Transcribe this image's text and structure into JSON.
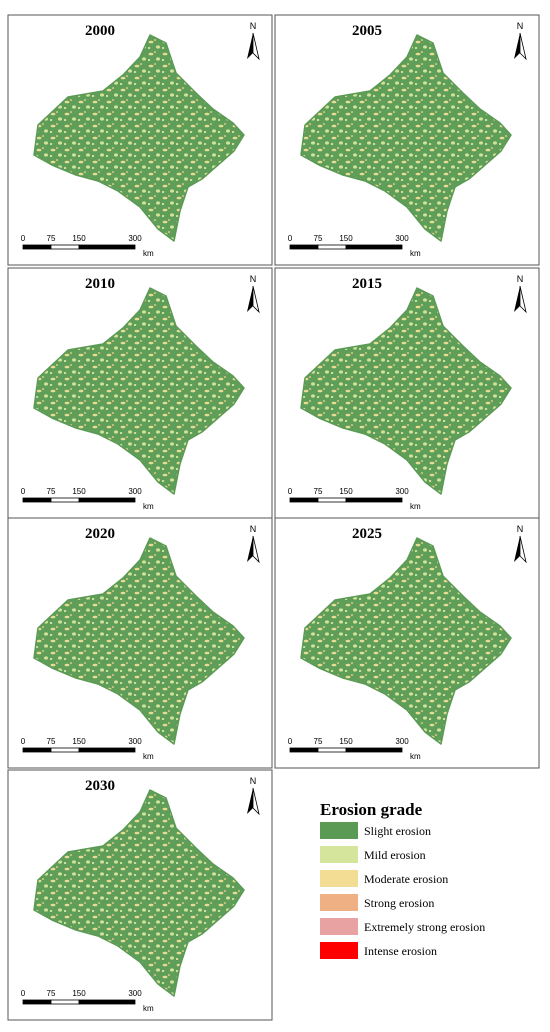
{
  "panels": [
    {
      "year": "2000"
    },
    {
      "year": "2005"
    },
    {
      "year": "2010"
    },
    {
      "year": "2015"
    },
    {
      "year": "2020"
    },
    {
      "year": "2025"
    },
    {
      "year": "2030"
    }
  ],
  "north": "N",
  "scale_bar": {
    "ticks": [
      0,
      75,
      150,
      300
    ],
    "unit": "km"
  },
  "legend": {
    "title": "Erosion grade",
    "items": [
      {
        "label": "Slight erosion",
        "color": "#5a9a54"
      },
      {
        "label": "Mild erosion",
        "color": "#d6e59c"
      },
      {
        "label": "Moderate erosion",
        "color": "#f3dc94"
      },
      {
        "label": "Strong erosion",
        "color": "#efb083"
      },
      {
        "label": "Extremely strong erosion",
        "color": "#e9a2a2"
      },
      {
        "label": "Intense erosion",
        "color": "#ff0000"
      }
    ]
  }
}
